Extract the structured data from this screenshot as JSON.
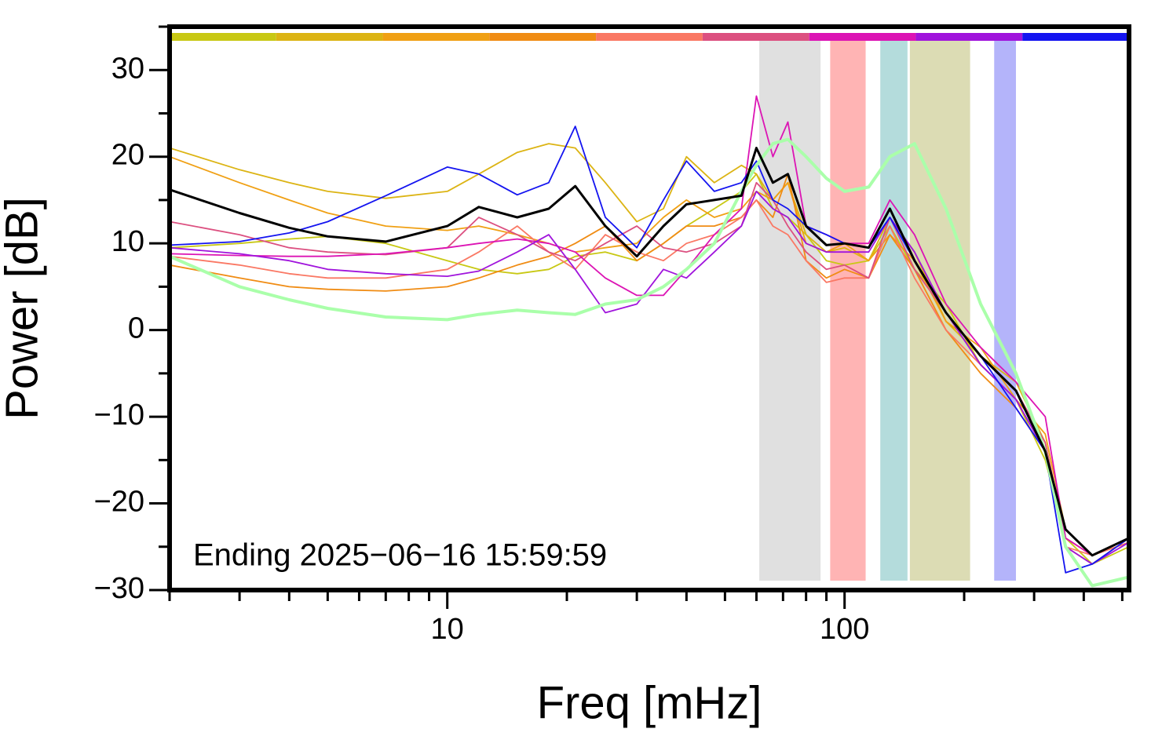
{
  "chart_data": {
    "type": "line",
    "xlabel": "Freq [mHz]",
    "ylabel": "Power [dB]",
    "annotation": "Ending 2025−06−16 15:59:59",
    "xscale": "log",
    "xlim": [
      2,
      520
    ],
    "ylim": [
      -30,
      35
    ],
    "xticks": [
      10,
      100
    ],
    "xminorticks": [
      2,
      3,
      4,
      5,
      6,
      7,
      8,
      9,
      20,
      30,
      40,
      50,
      60,
      70,
      80,
      90,
      200,
      300,
      400,
      500
    ],
    "yticks": [
      {
        "value": -30,
        "label": "−30"
      },
      {
        "value": -20,
        "label": "−20"
      },
      {
        "value": -10,
        "label": "−10"
      },
      0,
      10,
      20,
      30
    ],
    "yminorticks": [
      -25,
      -15,
      -5,
      5,
      15,
      25,
      35
    ],
    "bands": [
      {
        "x0": 61,
        "x1": 87,
        "color": "#e0e0e0"
      },
      {
        "x0": 92,
        "x1": 113,
        "color": "#ffb4b4"
      },
      {
        "x0": 123,
        "x1": 144,
        "color": "#b4dcdc"
      },
      {
        "x0": 146,
        "x1": 207,
        "color": "#dcdcb4"
      },
      {
        "x0": 238,
        "x1": 270,
        "color": "#b4b4fa"
      }
    ],
    "x": [
      2,
      3,
      4,
      5,
      7,
      10,
      12,
      15,
      18,
      21,
      25,
      30,
      35,
      40,
      47,
      55,
      60,
      66,
      72,
      80,
      90,
      100,
      115,
      130,
      150,
      180,
      220,
      270,
      320,
      360,
      420,
      520
    ],
    "series": [
      {
        "color": "#c8c814",
        "values": [
          9.5,
          10,
          10.5,
          10.8,
          10,
          8,
          7,
          6.5,
          7,
          8.5,
          9,
          8,
          10,
          12,
          14,
          16,
          18,
          14,
          13,
          11,
          8,
          7.5,
          8,
          12,
          7,
          3,
          -4,
          -8,
          -15,
          -24,
          -27,
          -25
        ]
      },
      {
        "color": "#dcb414",
        "values": [
          21,
          18.5,
          17,
          16,
          15.2,
          16,
          18,
          20.5,
          21.5,
          21,
          17,
          12.5,
          14,
          20,
          17,
          19,
          18,
          15,
          17,
          11,
          9,
          9.5,
          8,
          13,
          9,
          1,
          -3,
          -6,
          -13,
          -24,
          -26,
          -24.5
        ]
      },
      {
        "color": "#f0a014",
        "values": [
          20,
          17,
          15,
          13.5,
          12,
          11.5,
          12,
          11,
          10,
          9,
          9.5,
          10,
          13,
          15,
          13,
          14,
          16,
          15,
          17,
          10,
          9,
          10,
          8,
          11,
          8,
          1,
          -2,
          -8,
          -12,
          -23,
          -26,
          -24
        ]
      },
      {
        "color": "#f08c14",
        "values": [
          7.5,
          6,
          5,
          4.7,
          4.5,
          5,
          6,
          7.5,
          8.5,
          10,
          12,
          8,
          10,
          12,
          12,
          13,
          15,
          13,
          18,
          8,
          6,
          7,
          6,
          11,
          7,
          0,
          -5,
          -9,
          -14,
          -25,
          -27,
          -24
        ]
      },
      {
        "color": "#fa7864",
        "values": [
          8.5,
          7.5,
          6.5,
          6,
          6,
          7,
          9,
          12,
          9,
          7,
          11,
          9,
          8,
          10,
          11,
          13,
          15,
          12,
          11,
          8,
          5.5,
          6,
          6,
          12,
          6,
          0,
          -4,
          -8,
          -14,
          -25,
          -26,
          -24.5
        ]
      },
      {
        "color": "#dc5080",
        "values": [
          12.5,
          11,
          9.5,
          9,
          8.7,
          9.5,
          13,
          11,
          9,
          8,
          10,
          12,
          9.5,
          9,
          10,
          12,
          17,
          15,
          12,
          9,
          7,
          7.5,
          6,
          13,
          7,
          2,
          -3,
          -7,
          -13,
          -24,
          -26,
          -24
        ]
      },
      {
        "color": "#dc14b4",
        "values": [
          8.8,
          8.6,
          8.5,
          8.5,
          8.8,
          9.5,
          10,
          10.5,
          10,
          9,
          6,
          4,
          4,
          7,
          11,
          14,
          27,
          20,
          24,
          12,
          11,
          10,
          10,
          15,
          11,
          3,
          -2,
          -6,
          -10,
          -24,
          -26,
          -24
        ]
      },
      {
        "color": "#a014dc",
        "values": [
          9.5,
          8.8,
          8,
          7,
          6.5,
          6.2,
          6.8,
          9,
          11,
          7,
          2,
          3,
          7,
          6,
          9,
          12,
          16,
          14,
          13,
          10,
          9,
          9,
          9,
          13,
          9,
          2,
          -4,
          -8,
          -14,
          -25,
          -27,
          -24.5
        ]
      },
      {
        "color": "#1414f0",
        "values": [
          9.8,
          10.2,
          11.2,
          12.5,
          15.5,
          18.8,
          18,
          15.6,
          17,
          23.5,
          13,
          9.5,
          15,
          19.5,
          16,
          17,
          19.5,
          15,
          14,
          12,
          11,
          10,
          9.5,
          13,
          8,
          2,
          -3,
          -9,
          -14,
          -28,
          -27,
          -24
        ]
      },
      {
        "color": "#aaffaa",
        "width": 4,
        "values": [
          8.5,
          5,
          3.5,
          2.5,
          1.5,
          1.2,
          1.8,
          2.3,
          2,
          1.8,
          3,
          3.5,
          5,
          7,
          10,
          16,
          19,
          21.5,
          22,
          20,
          17.5,
          16,
          16.5,
          20,
          21.5,
          14,
          3,
          -5,
          -14,
          -25,
          -29.5,
          -28.5
        ]
      },
      {
        "color": "#000000",
        "width": 3,
        "values": [
          16.2,
          13.5,
          11.8,
          10.8,
          10.2,
          12,
          14.2,
          13,
          14,
          16.6,
          12,
          8.5,
          12,
          14.5,
          15,
          15.5,
          21,
          17,
          18,
          12,
          9.8,
          10,
          9.5,
          14,
          8,
          2,
          -3,
          -7,
          -14,
          -23,
          -26,
          -24
        ]
      }
    ]
  }
}
